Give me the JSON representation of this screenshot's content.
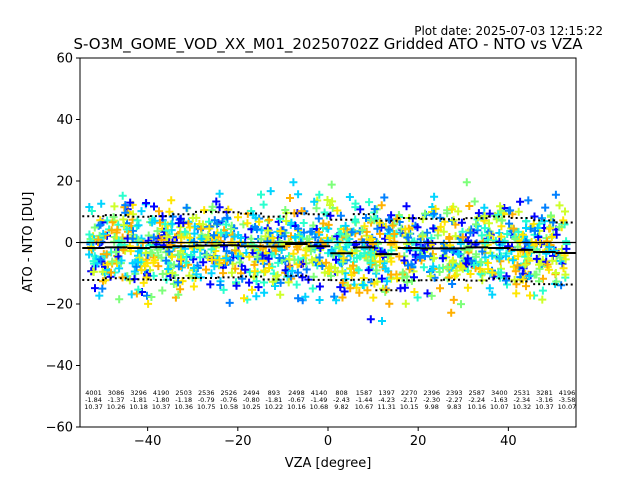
{
  "plot_date_text": "Plot date: 2025-07-03 12:15:22",
  "chart_data": {
    "type": "scatter",
    "title": "S-O3M_GOME_VOD_XX_M01_20250702Z Gridded ATO - NTO vs VZA",
    "xlabel": "VZA [degree]",
    "ylabel": "ATO - NTO [DU]",
    "xlim": [
      -55,
      55
    ],
    "ylim": [
      -60,
      60
    ],
    "xticks": [
      -40,
      -20,
      0,
      20,
      40
    ],
    "yticks": [
      -60,
      -40,
      -20,
      0,
      20,
      40,
      60
    ],
    "marker": "+",
    "point_colors": [
      "#0000ff",
      "#0080ff",
      "#00d4ff",
      "#29ffce",
      "#7dff7a",
      "#ceff29",
      "#ffe600",
      "#ffb000"
    ],
    "bins": [
      {
        "x": -52,
        "n": "4001",
        "mean": "-1.84",
        "std": "10.37",
        "median": -1.8
      },
      {
        "x": -47,
        "n": "3086",
        "mean": "-1.37",
        "std": "10.26",
        "median": -1.6
      },
      {
        "x": -42,
        "n": "3296",
        "mean": "-1.81",
        "std": "10.18",
        "median": -1.8
      },
      {
        "x": -37,
        "n": "4190",
        "mean": "-1.80",
        "std": "10.37",
        "median": -1.5
      },
      {
        "x": -32,
        "n": "2503",
        "mean": "-1.18",
        "std": "10.36",
        "median": -1.2
      },
      {
        "x": -27,
        "n": "2536",
        "mean": "-0.79",
        "std": "10.75",
        "median": -1.0
      },
      {
        "x": -22,
        "n": "2526",
        "mean": "-0.76",
        "std": "10.58",
        "median": -0.9
      },
      {
        "x": -17,
        "n": "2494",
        "mean": "-0.80",
        "std": "10.25",
        "median": -1.2
      },
      {
        "x": -12,
        "n": "893",
        "mean": "-1.81",
        "std": "10.22",
        "median": -1.3
      },
      {
        "x": -7,
        "n": "2498",
        "mean": "-0.67",
        "std": "10.16",
        "median": -0.5
      },
      {
        "x": -2,
        "n": "4140",
        "mean": "-1.49",
        "std": "10.68",
        "median": -1.2
      },
      {
        "x": 3,
        "n": "808",
        "mean": "-2.43",
        "std": "9.82",
        "median": -3.5
      },
      {
        "x": 8,
        "n": "1587",
        "mean": "-1.44",
        "std": "10.67",
        "median": -1.6
      },
      {
        "x": 13,
        "n": "1397",
        "mean": "-4.23",
        "std": "11.31",
        "median": -3.8
      },
      {
        "x": 18,
        "n": "2270",
        "mean": "-2.17",
        "std": "10.15",
        "median": -1.8
      },
      {
        "x": 23,
        "n": "2396",
        "mean": "-2.30",
        "std": "9.98",
        "median": -1.9
      },
      {
        "x": 28,
        "n": "2393",
        "mean": "-2.27",
        "std": "9.83",
        "median": -1.9
      },
      {
        "x": 33,
        "n": "2587",
        "mean": "-2.24",
        "std": "10.16",
        "median": -1.6
      },
      {
        "x": 38,
        "n": "3400",
        "mean": "-1.63",
        "std": "10.07",
        "median": -1.8
      },
      {
        "x": 43,
        "n": "2531",
        "mean": "-2.34",
        "std": "10.32",
        "median": -2.4
      },
      {
        "x": 48,
        "n": "3281",
        "mean": "-3.16",
        "std": "10.37",
        "median": -3.1
      },
      {
        "x": 53,
        "n": "4196",
        "mean": "-3.58",
        "std": "10.07",
        "median": -3.4
      }
    ],
    "zero_line": 0,
    "line_colors": {
      "median": "#000000",
      "spread": "#000000",
      "zero": "#000000"
    }
  }
}
